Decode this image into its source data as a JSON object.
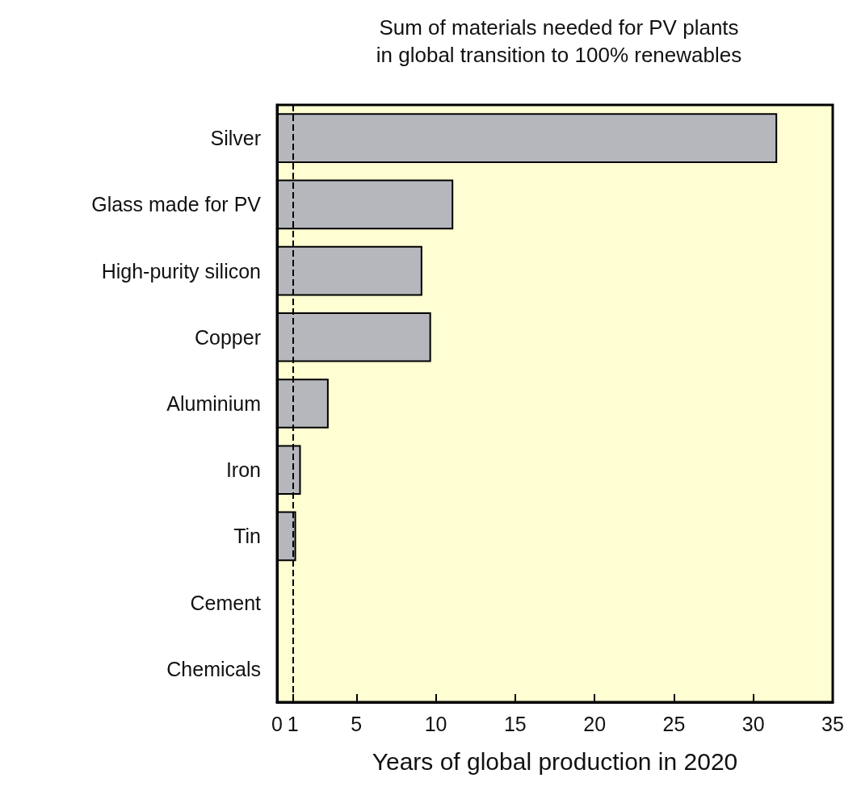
{
  "chart_data": {
    "type": "bar",
    "orientation": "horizontal",
    "title": "Sum of materials needed for PV plants\nin global transition to 100% renewables",
    "xlabel": "Years of global production in 2020",
    "categories": [
      "Silver",
      "Glass made for PV",
      "High-purity silicon",
      "Copper",
      "Aluminium",
      "Iron",
      "Tin",
      "Cement",
      "Chemicals"
    ],
    "values": [
      31.5,
      11.1,
      9.15,
      9.7,
      3.25,
      1.5,
      1.2,
      0,
      0
    ],
    "color": "#b5b7bc",
    "xlim": [
      0,
      35
    ],
    "xticks": [
      0,
      1,
      5,
      10,
      15,
      20,
      25,
      30,
      35
    ],
    "ref_lines": [
      {
        "axis": "x",
        "value": 1,
        "line_style": "dashed",
        "color": "#000000"
      }
    ],
    "grid": false
  }
}
